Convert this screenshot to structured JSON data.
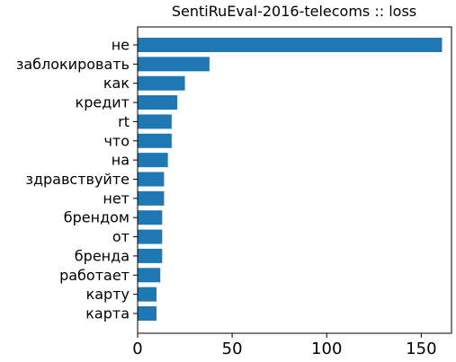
{
  "chart_data": {
    "type": "bar",
    "orientation": "horizontal",
    "title": "SentiRuEval-2016-telecoms :: loss",
    "xlabel": "",
    "ylabel": "",
    "categories": [
      "не",
      "заблокировать",
      "как",
      "кредит",
      "rt",
      "что",
      "на",
      "здравствуйте",
      "нет",
      "брендом",
      "от",
      "бренда",
      "работает",
      "карту",
      "карта"
    ],
    "values": [
      161,
      38,
      25,
      21,
      18,
      18,
      16,
      14,
      14,
      13,
      13,
      13,
      12,
      10,
      10
    ],
    "xlim": [
      0,
      166
    ],
    "xticks": [
      0,
      50,
      100,
      150
    ],
    "bar_color": "#1f77b4",
    "grid": false,
    "legend": "none"
  }
}
